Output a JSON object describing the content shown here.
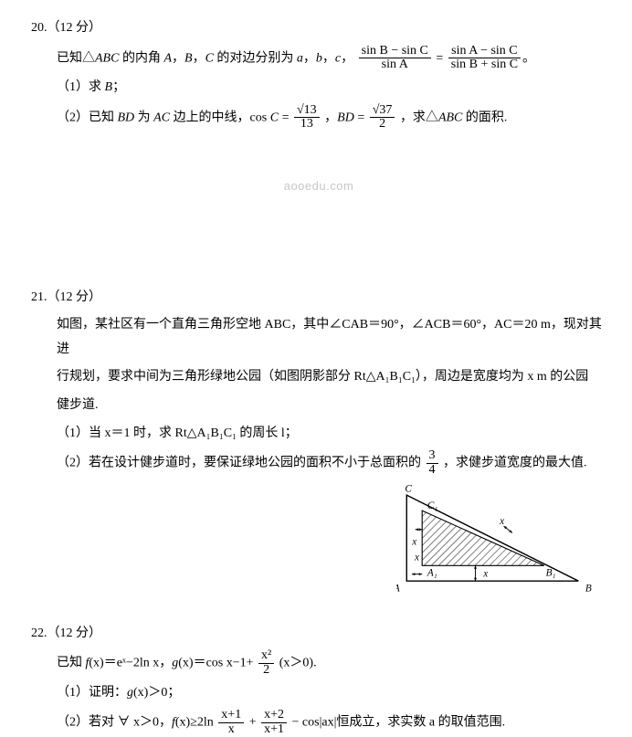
{
  "problems": {
    "p20": {
      "heading": "20.（12 分）",
      "line1_a": "已知△",
      "line1_b": "ABC",
      "line1_c": " 的内角 ",
      "line1_d": "A",
      "line1_e": "，",
      "line1_f": "B",
      "line1_g": "，",
      "line1_h": "C",
      "line1_i": " 的对边分别为 ",
      "line1_j": "a",
      "line1_k": "，",
      "line1_l": "b",
      "line1_m": "，",
      "line1_n": "c",
      "line1_o": "，",
      "frac1_n": "sin B − sin C",
      "frac1_d": "sin A",
      "eq": " = ",
      "frac2_n": "sin A − sin C",
      "frac2_d": "sin B + sin C",
      "dot": "。",
      "sub1": "（1）求 ",
      "sub1_B": "B",
      "sub1_end": "；",
      "sub2_a": "（2）已知 ",
      "sub2_b": "BD",
      "sub2_c": " 为 ",
      "sub2_d": "AC",
      "sub2_e": " 边上的中线，cos ",
      "sub2_f": "C",
      "sub2_g": " = ",
      "frac3_n": "√13",
      "frac3_d": "13",
      "sub2_h": "，",
      "sub2_i": "BD",
      "sub2_j": " = ",
      "frac4_n": "√37",
      "frac4_d": "2",
      "sub2_k": "，求△",
      "sub2_l": "ABC",
      "sub2_m": " 的面积."
    },
    "watermark": "aooedu.com",
    "p21": {
      "heading": "21.（12 分）",
      "l1": "如图，某社区有一个直角三角形空地 ABC，其中∠CAB＝90°，∠ACB＝60°，AC＝20 m，现对其进",
      "l2": "行规划，要求中间为三角形绿地公园（如图阴影部分 Rt△A₁B₁C₁），周边是宽度均为 x m 的公园",
      "l3": "健步道.",
      "sub1": "（1）当 x＝1 时，求 Rt△A₁B₁C₁ 的周长 l；",
      "sub2_a": "（2）若在设计健步道时，要保证绿地公园的面积不小于总面积的",
      "frac_n": "3",
      "frac_d": "4",
      "sub2_b": "，求健步道宽度的最大值.",
      "figure": {
        "outer": {
          "A": [
            0,
            100
          ],
          "B": [
            200,
            100
          ],
          "C": [
            0,
            0
          ]
        },
        "inner": {
          "A1": [
            18,
            82
          ],
          "B1": [
            160,
            82
          ],
          "C1": [
            18,
            18
          ]
        },
        "labels": {
          "A": "A",
          "B": "B",
          "C": "C",
          "A1": "A₁",
          "B1": "B₁",
          "C1": "C₁",
          "x": "x"
        },
        "stroke": "#000000",
        "hatch_spacing": 6
      }
    },
    "p22": {
      "heading": "22.（12 分）",
      "l1_a": "已知 ",
      "l1_b": "f",
      "l1_c": "(x)＝eˣ−2ln x，",
      "l1_d": "g",
      "l1_e": "(x)＝cos x−1+",
      "frac1_n": "x²",
      "frac1_d": "2",
      "l1_f": "(x＞0).",
      "sub1_a": "（1）证明：",
      "sub1_b": "g",
      "sub1_c": "(x)＞0；",
      "sub2_a": "（2）若对 ∀ x＞0，",
      "sub2_b": "f",
      "sub2_c": "(x)≥2ln ",
      "frac2_n": "x+1",
      "frac2_d": "x",
      "sub2_d": " + ",
      "frac3_n": "x+2",
      "frac3_d": "x+1",
      "sub2_e": " − cos|ax|恒成立，求实数 a 的取值范围."
    }
  }
}
